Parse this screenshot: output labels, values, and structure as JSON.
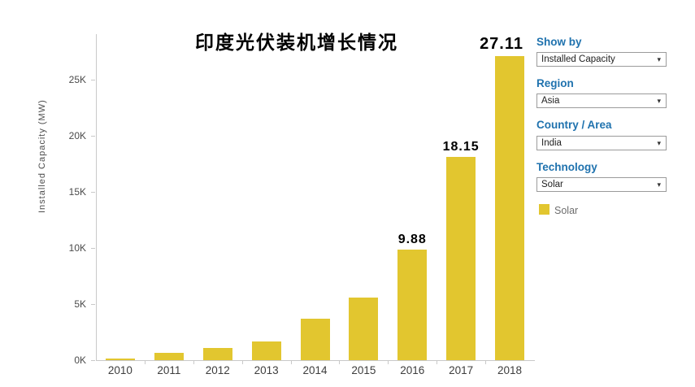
{
  "chart_data": {
    "type": "bar",
    "title": "印度光伏装机增长情况",
    "ylabel": "Installed Capacity (MW)",
    "categories": [
      "2010",
      "2011",
      "2012",
      "2013",
      "2014",
      "2015",
      "2016",
      "2017",
      "2018"
    ],
    "values": [
      0.1,
      0.65,
      1.1,
      1.65,
      3.7,
      5.6,
      9.88,
      18.15,
      27.11
    ],
    "unit": "thousand MW (axis shown in K)",
    "yticks": [
      "0K",
      "5K",
      "10K",
      "15K",
      "20K",
      "25K"
    ],
    "ylim": [
      0,
      28
    ],
    "grid": false,
    "legend_position": "right",
    "bar_color": "#e2c62f",
    "point_labels": [
      {
        "index": 6,
        "text": "9.88",
        "large": false
      },
      {
        "index": 7,
        "text": "18.15",
        "large": false
      },
      {
        "index": 8,
        "text": "27.11",
        "large": true
      }
    ]
  },
  "panel": {
    "filters": [
      {
        "label": "Show by",
        "value": "Installed Capacity"
      },
      {
        "label": "Region",
        "value": "Asia"
      },
      {
        "label": "Country / Area",
        "value": "India"
      },
      {
        "label": "Technology",
        "value": "Solar"
      }
    ],
    "legend": {
      "label": "Solar",
      "color": "#e2c62f"
    }
  },
  "icons": {
    "dropdown_caret": "▾"
  },
  "colors": {
    "accent_blue": "#1f72ae",
    "axis_line": "#c9c9c9",
    "bar_yellow": "#e2c62f"
  }
}
